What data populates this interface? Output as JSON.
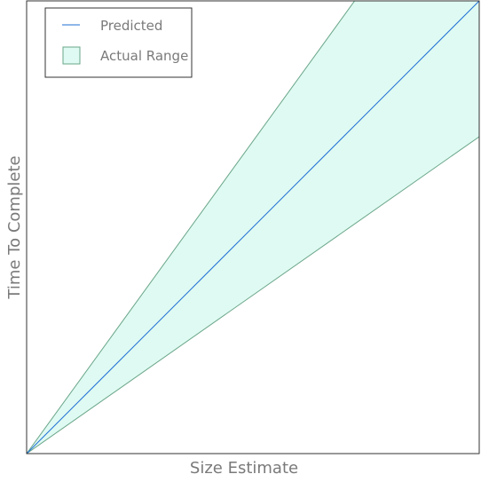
{
  "chart_data": {
    "type": "area",
    "xlabel": "Size Estimate",
    "ylabel": "Time To Complete",
    "x": [
      0,
      1
    ],
    "xlim": [
      0,
      1
    ],
    "ylim": [
      0,
      1
    ],
    "grid": false,
    "legend_position": "top-left",
    "series": [
      {
        "name": "Predicted",
        "kind": "line",
        "color": "#1f6fd6",
        "y": [
          0,
          1
        ]
      },
      {
        "name": "Actual Range",
        "kind": "band",
        "fill": "#dffaf2",
        "edge": "#6aa68a",
        "lower": [
          0,
          0.7
        ],
        "upper": [
          0,
          1.38
        ]
      }
    ]
  }
}
